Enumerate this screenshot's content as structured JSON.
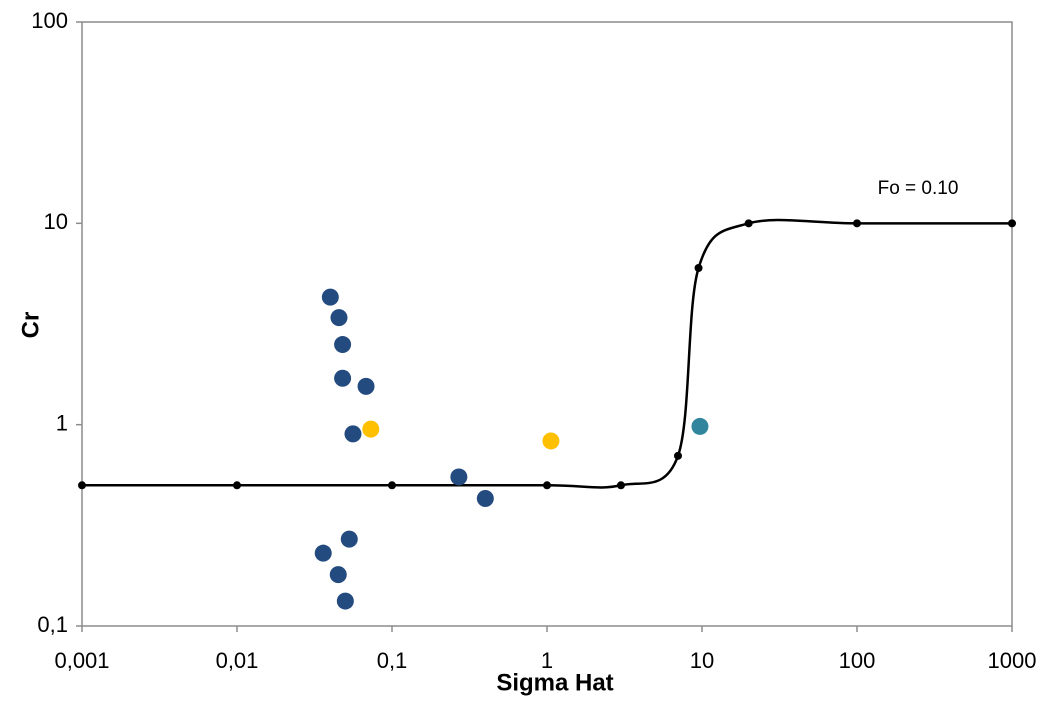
{
  "chart_data": {
    "type": "scatter",
    "x_label": "Sigma Hat",
    "y_label": "Cr",
    "annotation": "Fo = 0.10",
    "xscale": "log",
    "yscale": "log",
    "xlim": [
      0.001,
      1000
    ],
    "ylim": [
      0.1,
      100
    ],
    "xticks": [
      {
        "value": 0.001,
        "label": "0,001"
      },
      {
        "value": 0.01,
        "label": "0,01"
      },
      {
        "value": 0.1,
        "label": "0,1"
      },
      1,
      10,
      100,
      1000
    ],
    "yticks": [
      {
        "value": 0.1,
        "label": "0,1"
      },
      1,
      10,
      100
    ],
    "series": [
      {
        "style": "line",
        "color": "#000000",
        "x": [
          0.001,
          0.01,
          0.1,
          1,
          3,
          7,
          9.5,
          20,
          100,
          1000
        ],
        "values": [
          0.5,
          0.5,
          0.5,
          0.5,
          0.5,
          0.7,
          6,
          10,
          10,
          10
        ]
      },
      {
        "style": "points",
        "color": "#244b7f",
        "x": [
          0.04,
          0.0455,
          0.048,
          0.048,
          0.068,
          0.056,
          0.27,
          0.4,
          0.053,
          0.036,
          0.045,
          0.05
        ],
        "values": [
          4.3,
          3.4,
          2.5,
          1.7,
          1.55,
          0.9,
          0.55,
          0.43,
          0.27,
          0.23,
          0.18,
          0.133
        ]
      },
      {
        "style": "points",
        "color": "#ffc000",
        "x": [
          0.073,
          1.06
        ],
        "values": [
          0.95,
          0.83
        ]
      },
      {
        "style": "points",
        "color": "#31859c",
        "x": [
          9.7
        ],
        "values": [
          0.98
        ]
      }
    ]
  }
}
